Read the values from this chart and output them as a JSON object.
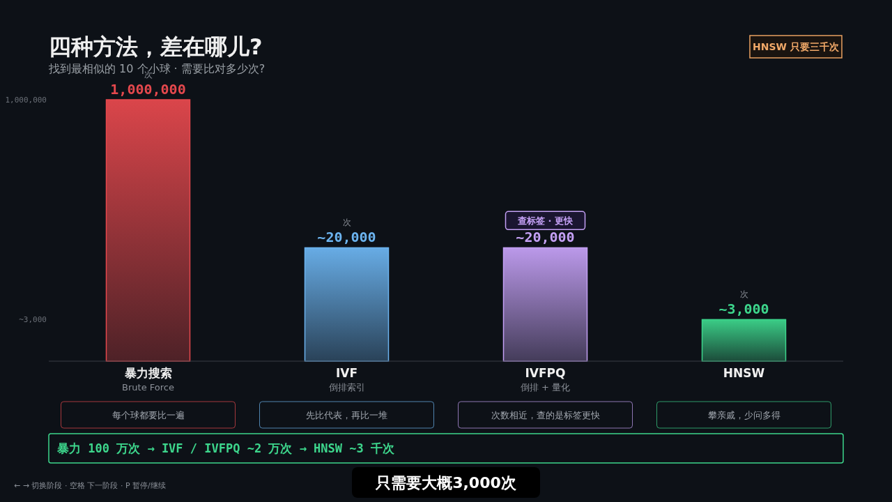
{
  "chart_data": {
    "type": "bar",
    "title": "四种方法，差在哪儿?",
    "subtitle": "找到最相似的 10 个小球 · 需要比对多少次?",
    "categories": [
      "暴力搜索\nBrute Force",
      "IVF\n倒排索引",
      "IVFPQ\n倒排 + 量化",
      "HNSW"
    ],
    "values": [
      1000000,
      20000,
      20000,
      3000
    ],
    "colors": [
      "#e5484d",
      "#6cb4f0",
      "#c4a0f5",
      "#3dd68c"
    ],
    "value_labels": [
      "1,000,000",
      "~20,000",
      "~20,000",
      "~3,000"
    ],
    "log": "y",
    "ylim": [
      1000,
      1000000
    ],
    "yticks": [
      {
        "value": 1000000,
        "label": "1,000,000"
      },
      {
        "value": 3000,
        "label": "~3,000"
      }
    ],
    "grid": false,
    "annotations": [
      "HNSW 只要三千次",
      "每个球都要比一遍",
      "先比代表，再比一堆",
      "次数相近，查的是标签更快",
      "攀亲戚，少问多得",
      "暴力 100 万次  →  IVF / IVFPQ ~2 万次  →  HNSW ~3 千次",
      "← → 切换阶段 · 空格 下一阶段 · P 暂停/继续",
      "只需要大概3,000次",
      {
        "text": "次",
        "x": "暴力搜索\nBrute Force",
        "y": 1000000
      },
      {
        "text": "次",
        "x": "IVF\n倒排索引",
        "y": 20000
      },
      {
        "text": "查标签 · 更快",
        "x": "IVFPQ\n倒排 + 量化",
        "y": 20000
      },
      {
        "text": "次",
        "x": "HNSW",
        "y": 3000
      }
    ]
  }
}
